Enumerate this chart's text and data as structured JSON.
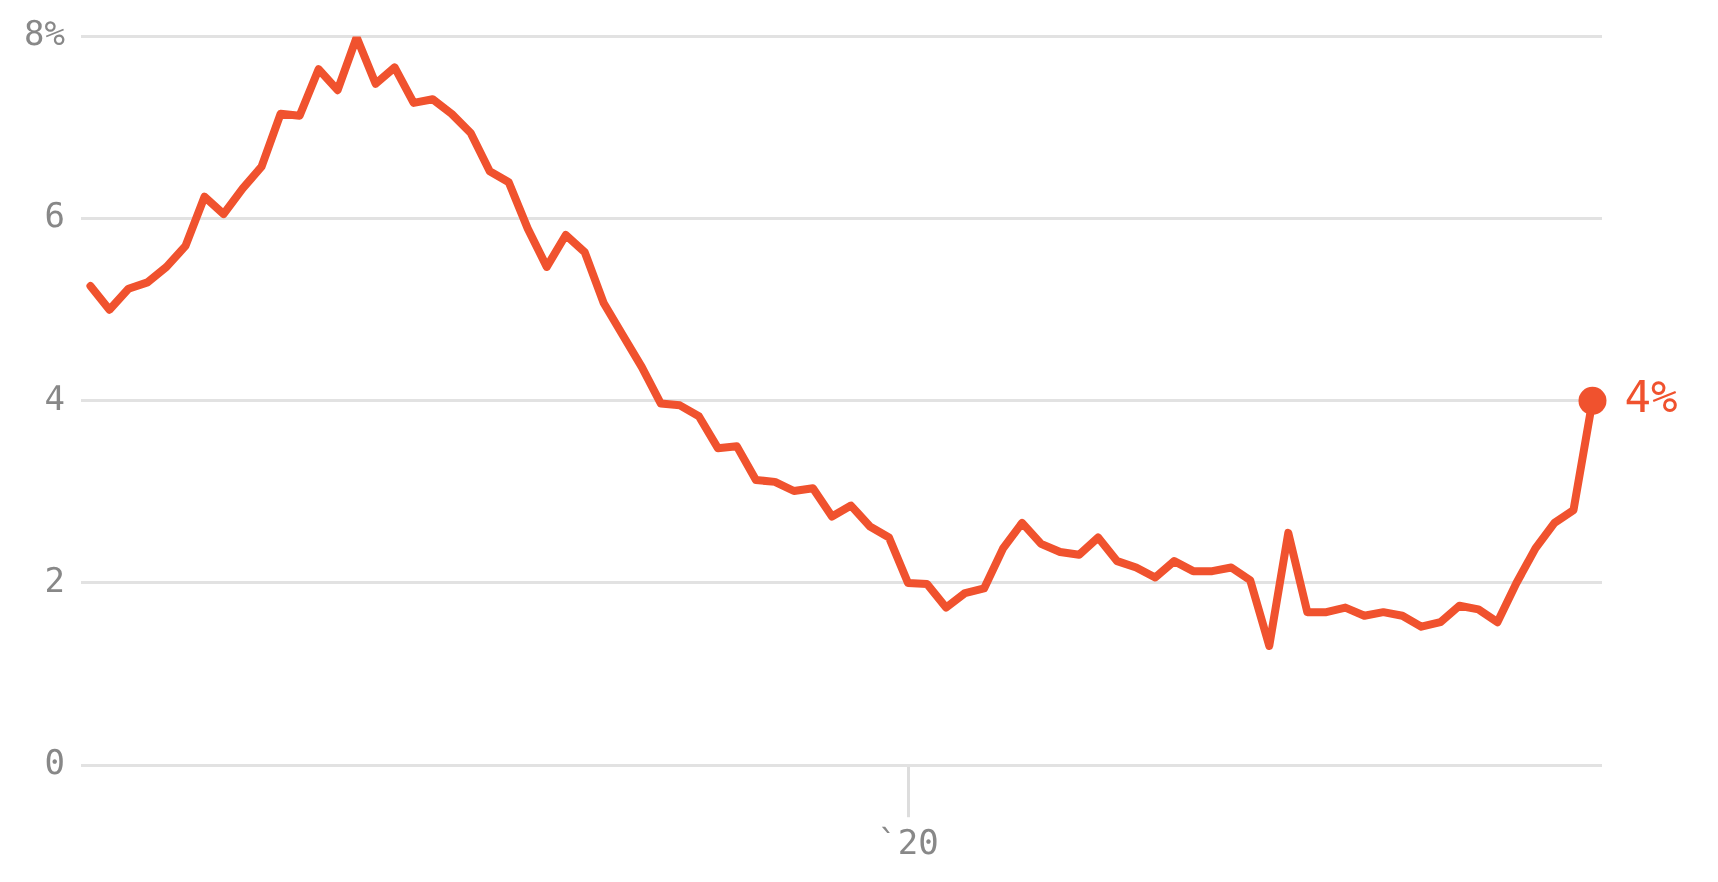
{
  "chart_data": {
    "type": "line",
    "categories": [
      null,
      null,
      null,
      null,
      null,
      null,
      null,
      null,
      null,
      null,
      null,
      null,
      null,
      null,
      null,
      null,
      null,
      null,
      null,
      null,
      null,
      null,
      null,
      null,
      null,
      null,
      null,
      null,
      null,
      null,
      null,
      null,
      null,
      null,
      null,
      null,
      null,
      null,
      null,
      null,
      null,
      null,
      null,
      "`20",
      null,
      null,
      null,
      null,
      null,
      null,
      null,
      null,
      null,
      null,
      null,
      null,
      null,
      null,
      null,
      null,
      null,
      null,
      null,
      null,
      null,
      null,
      null,
      null,
      null,
      null,
      null,
      null,
      null,
      null,
      null,
      null,
      null,
      null,
      null,
      null
    ],
    "series": [
      {
        "color": "#f0522e",
        "values": [
          5.26,
          5.0,
          5.23,
          5.3,
          5.47,
          5.7,
          6.24,
          6.05,
          6.33,
          6.57,
          7.15,
          7.13,
          7.64,
          7.41,
          7.99,
          7.48,
          7.66,
          7.27,
          7.31,
          7.15,
          6.94,
          6.52,
          6.4,
          5.89,
          5.47,
          5.82,
          5.63,
          5.07,
          4.72,
          4.37,
          3.97,
          3.95,
          3.83,
          3.48,
          3.5,
          3.13,
          3.11,
          3.01,
          3.04,
          2.73,
          2.85,
          2.62,
          2.5,
          2.0,
          1.99,
          1.73,
          1.89,
          1.94,
          2.38,
          2.66,
          2.43,
          2.34,
          2.31,
          2.5,
          2.24,
          2.17,
          2.06,
          2.24,
          2.13,
          2.13,
          2.17,
          2.03,
          1.31,
          2.55,
          1.68,
          1.68,
          1.73,
          1.64,
          1.68,
          1.64,
          1.52,
          1.57,
          1.75,
          1.71,
          1.57,
          2.0,
          2.38,
          2.66,
          2.8,
          4.0
        ]
      }
    ],
    "ylim": [
      0,
      8
    ],
    "yticks": [
      0,
      2,
      4,
      6,
      {
        "value": 8,
        "label": "8%"
      }
    ],
    "grid": "y",
    "legend": false,
    "marker": "none",
    "line_style": "solid",
    "annotations": [
      "4%"
    ]
  }
}
